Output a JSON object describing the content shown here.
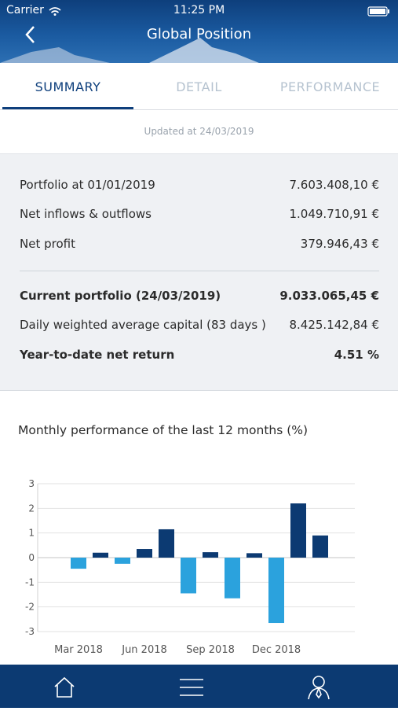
{
  "status_bar": {
    "carrier": "Carrier",
    "time": "11:25 PM"
  },
  "header": {
    "title": "Global Position"
  },
  "tabs": [
    "SUMMARY",
    "DETAIL",
    "PERFORMANCE"
  ],
  "updated": "Updated at 24/03/2019",
  "summary": {
    "rows": [
      {
        "label": "Portfolio at 01/01/2019",
        "value": "7.603.408,10 €"
      },
      {
        "label": "Net inflows & outflows",
        "value": "1.049.710,91 €"
      },
      {
        "label": "Net profit",
        "value": "379.946,43 €"
      }
    ],
    "totals": [
      {
        "label": "Current portfolio (24/03/2019)",
        "value": "9.033.065,45 €"
      },
      {
        "label": "Daily weighted average capital (83 days )",
        "value": "8.425.142,84 €"
      },
      {
        "label": "Year-to-date net return",
        "value": "4.51 %"
      }
    ]
  },
  "chart_data": {
    "type": "bar",
    "title": "Monthly performance of the last 12 months (%)",
    "categories": [
      "Mar 2018",
      null,
      null,
      "Jun 2018",
      null,
      null,
      "Sep 2018",
      null,
      null,
      "Dec 2018",
      null,
      null
    ],
    "values": [
      -0.45,
      0.2,
      -0.25,
      0.35,
      1.15,
      -1.45,
      0.22,
      -1.65,
      0.18,
      -2.65,
      2.2,
      0.9
    ],
    "positive_color": "#0c3a72",
    "negative_color": "#2ba2dd",
    "ylim": [
      -3,
      3
    ],
    "yticks": [
      -3,
      -2,
      -1,
      0,
      1,
      2,
      3
    ],
    "grid": true
  }
}
